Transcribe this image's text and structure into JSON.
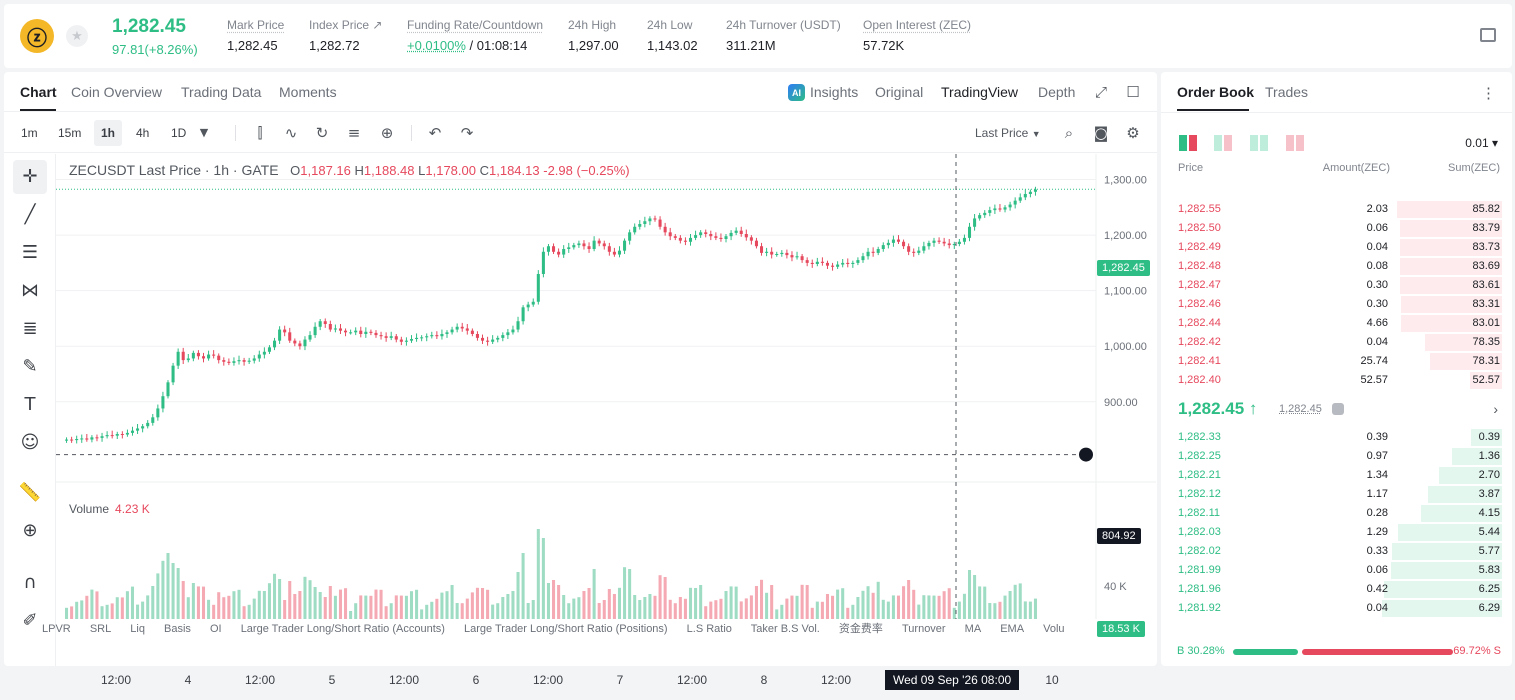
{
  "header": {
    "last_price": "1,282.45",
    "change": "97.81(+8.26%)",
    "stats": [
      {
        "label": "Mark Price",
        "value": "1,282.45"
      },
      {
        "label": "Index Price ↗",
        "value": "1,282.72"
      },
      {
        "label": "Funding Rate/Countdown",
        "value_green": "+0.0100%",
        "value": " / 01:08:14"
      },
      {
        "label": "24h High",
        "value": "1,297.00"
      },
      {
        "label": "24h Low",
        "value": "1,143.02"
      },
      {
        "label": "24h Turnover (USDT)",
        "value": "311.21M"
      },
      {
        "label": "Open Interest (ZEC)",
        "value": "57.72K"
      }
    ]
  },
  "chart_tabs": [
    "Chart",
    "Coin Overview",
    "Trading Data",
    "Moments"
  ],
  "view_tabs": [
    "Insights",
    "Original",
    "TradingView",
    "Depth"
  ],
  "timeframes": [
    "1m",
    "15m",
    "1h",
    "4h",
    "1D"
  ],
  "price_source": "Last Price",
  "legend": {
    "symbol": "ZECUSDT Last Price · 1h · GATE",
    "o_label": "O",
    "o": "1,187.16",
    "h_label": "H",
    "h": "1,188.48",
    "l_label": "L",
    "l": "1,178.00",
    "c_label": "C",
    "c": "1,184.13",
    "chg": "-2.98 (−0.25%)"
  },
  "volume_legend": {
    "label": "Volume",
    "value": "4.23 K"
  },
  "price_tags": {
    "last": "1,282.45",
    "cursor": "804.92",
    "volume": "18.53 K"
  },
  "time_tag": "Wed 09 Sep '26   08:00",
  "indicators": [
    "LPVR",
    "SRL",
    "Liq",
    "Basis",
    "OI",
    "Large Trader Long/Short Ratio (Accounts)",
    "Large Trader Long/Short Ratio (Positions)",
    "L.S Ratio",
    "Taker B.S Vol.",
    "资金费率",
    "Turnover",
    "MA",
    "EMA",
    "Volu"
  ],
  "chart_data": {
    "type": "candlestick",
    "symbol": "ZECUSDT",
    "interval": "1h",
    "y_ticks": [
      "1,300.00",
      "1,200.00",
      "1,100.00",
      "1,000.00",
      "900.00"
    ],
    "ylim": [
      770,
      1310
    ],
    "x_ticks": [
      "12:00",
      "4",
      "12:00",
      "5",
      "12:00",
      "6",
      "12:00",
      "7",
      "12:00",
      "8",
      "12:00",
      "9",
      "12:00",
      "10"
    ],
    "volume_ticks": [
      "40 K"
    ],
    "close": [
      832,
      831,
      833,
      834,
      832,
      836,
      835,
      838,
      840,
      839,
      842,
      841,
      844,
      848,
      852,
      856,
      862,
      872,
      888,
      910,
      935,
      965,
      990,
      975,
      978,
      988,
      982,
      978,
      985,
      983,
      975,
      972,
      970,
      973,
      975,
      972,
      974,
      978,
      985,
      990,
      998,
      1010,
      1030,
      1025,
      1010,
      1005,
      1000,
      1012,
      1020,
      1035,
      1045,
      1040,
      1030,
      1032,
      1028,
      1025,
      1025,
      1028,
      1022,
      1026,
      1024,
      1020,
      1018,
      1015,
      1018,
      1012,
      1008,
      1010,
      1013,
      1015,
      1016,
      1018,
      1020,
      1018,
      1022,
      1025,
      1030,
      1035,
      1032,
      1028,
      1022,
      1015,
      1010,
      1008,
      1012,
      1015,
      1020,
      1025,
      1030,
      1045,
      1070,
      1075,
      1080,
      1130,
      1170,
      1180,
      1170,
      1165,
      1175,
      1178,
      1182,
      1185,
      1180,
      1175,
      1190,
      1185,
      1180,
      1170,
      1165,
      1172,
      1190,
      1205,
      1215,
      1220,
      1225,
      1230,
      1228,
      1215,
      1205,
      1198,
      1195,
      1190,
      1188,
      1195,
      1200,
      1205,
      1202,
      1198,
      1195,
      1193,
      1198,
      1204,
      1208,
      1202,
      1196,
      1190,
      1180,
      1168,
      1170,
      1165,
      1166,
      1168,
      1164,
      1160,
      1162,
      1155,
      1150,
      1148,
      1152,
      1150,
      1145,
      1143,
      1147,
      1150,
      1148,
      1150,
      1155,
      1162,
      1170,
      1168,
      1175,
      1182,
      1186,
      1192,
      1188,
      1180,
      1170,
      1168,
      1172,
      1180,
      1186,
      1190,
      1188,
      1185,
      1182,
      1184,
      1188,
      1195,
      1215,
      1230,
      1236,
      1240,
      1245,
      1248,
      1246,
      1250,
      1255,
      1262,
      1268,
      1274,
      1278,
      1282
    ],
    "open": [
      830,
      832,
      831,
      833,
      834,
      832,
      836,
      835,
      838,
      840,
      839,
      842,
      841,
      844,
      848,
      852,
      856,
      862,
      872,
      888,
      910,
      935,
      965,
      990,
      975,
      978,
      988,
      982,
      978,
      985,
      983,
      975,
      972,
      970,
      973,
      975,
      972,
      974,
      978,
      985,
      990,
      998,
      1010,
      1030,
      1025,
      1010,
      1005,
      1000,
      1012,
      1020,
      1035,
      1045,
      1040,
      1030,
      1032,
      1028,
      1025,
      1025,
      1028,
      1022,
      1026,
      1024,
      1020,
      1018,
      1015,
      1018,
      1012,
      1008,
      1010,
      1013,
      1015,
      1016,
      1018,
      1020,
      1018,
      1022,
      1025,
      1030,
      1035,
      1032,
      1028,
      1022,
      1015,
      1010,
      1008,
      1012,
      1015,
      1020,
      1025,
      1030,
      1045,
      1070,
      1075,
      1080,
      1130,
      1170,
      1180,
      1170,
      1165,
      1175,
      1178,
      1182,
      1185,
      1180,
      1175,
      1190,
      1185,
      1180,
      1170,
      1165,
      1172,
      1190,
      1205,
      1215,
      1220,
      1225,
      1230,
      1228,
      1215,
      1205,
      1198,
      1195,
      1190,
      1188,
      1195,
      1200,
      1205,
      1202,
      1198,
      1195,
      1193,
      1198,
      1204,
      1208,
      1202,
      1196,
      1190,
      1180,
      1168,
      1170,
      1165,
      1166,
      1168,
      1164,
      1160,
      1162,
      1155,
      1150,
      1148,
      1152,
      1150,
      1145,
      1143,
      1147,
      1150,
      1148,
      1150,
      1155,
      1162,
      1170,
      1168,
      1175,
      1182,
      1186,
      1192,
      1188,
      1180,
      1170,
      1168,
      1172,
      1180,
      1186,
      1190,
      1188,
      1185,
      1182,
      1184,
      1188,
      1195,
      1215,
      1230,
      1236,
      1240,
      1245,
      1248,
      1246,
      1250,
      1255,
      1262,
      1268,
      1274,
      1278
    ]
  },
  "order_book": {
    "tabs": [
      "Order Book",
      "Trades"
    ],
    "precision": "0.01 ▾",
    "columns": [
      "Price",
      "Amount(ZEC)",
      "Sum(ZEC)"
    ],
    "asks": [
      {
        "price": "1,282.55",
        "amount": "2.03",
        "sum": "85.82",
        "depth": 0.86
      },
      {
        "price": "1,282.50",
        "amount": "0.06",
        "sum": "83.79",
        "depth": 0.84
      },
      {
        "price": "1,282.49",
        "amount": "0.04",
        "sum": "83.73",
        "depth": 0.84
      },
      {
        "price": "1,282.48",
        "amount": "0.08",
        "sum": "83.69",
        "depth": 0.84
      },
      {
        "price": "1,282.47",
        "amount": "0.30",
        "sum": "83.61",
        "depth": 0.84
      },
      {
        "price": "1,282.46",
        "amount": "0.30",
        "sum": "83.31",
        "depth": 0.83
      },
      {
        "price": "1,282.44",
        "amount": "4.66",
        "sum": "83.01",
        "depth": 0.83
      },
      {
        "price": "1,282.42",
        "amount": "0.04",
        "sum": "78.35",
        "depth": 0.63
      },
      {
        "price": "1,282.41",
        "amount": "25.74",
        "sum": "78.31",
        "depth": 0.59
      },
      {
        "price": "1,282.40",
        "amount": "52.57",
        "sum": "52.57",
        "depth": 0.26
      }
    ],
    "mid": {
      "price": "1,282.45 ↑",
      "mark": "1,282.45"
    },
    "bids": [
      {
        "price": "1,282.33",
        "amount": "0.39",
        "sum": "0.39",
        "depth": 0.25
      },
      {
        "price": "1,282.25",
        "amount": "0.97",
        "sum": "1.36",
        "depth": 0.41
      },
      {
        "price": "1,282.21",
        "amount": "1.34",
        "sum": "2.70",
        "depth": 0.52
      },
      {
        "price": "1,282.12",
        "amount": "1.17",
        "sum": "3.87",
        "depth": 0.61
      },
      {
        "price": "1,282.11",
        "amount": "0.28",
        "sum": "4.15",
        "depth": 0.66
      },
      {
        "price": "1,282.03",
        "amount": "1.29",
        "sum": "5.44",
        "depth": 0.85
      },
      {
        "price": "1,282.02",
        "amount": "0.33",
        "sum": "5.77",
        "depth": 0.9
      },
      {
        "price": "1,281.99",
        "amount": "0.06",
        "sum": "5.83",
        "depth": 0.91
      },
      {
        "price": "1,281.96",
        "amount": "0.42",
        "sum": "6.25",
        "depth": 0.97
      },
      {
        "price": "1,281.92",
        "amount": "0.04",
        "sum": "6.29",
        "depth": 0.98
      }
    ],
    "ratio": {
      "buy": "B 30.28%",
      "sell": "69.72% S",
      "buy_frac": 0.3028
    }
  },
  "colors": {
    "up": "#2ebd85",
    "down": "#e6485d",
    "accent": "#1d1f24"
  }
}
